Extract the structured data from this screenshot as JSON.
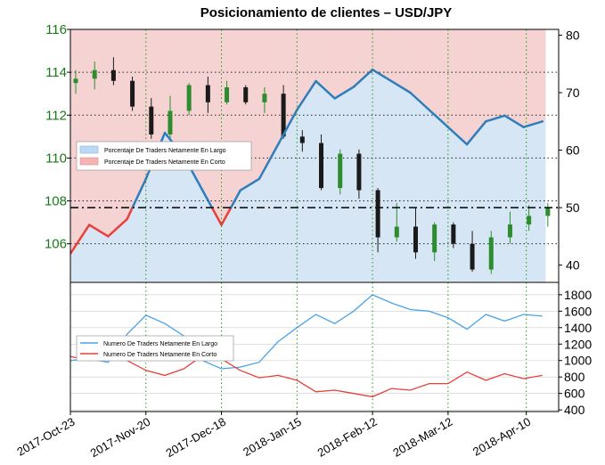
{
  "colors": {
    "long": "#2e7ebc",
    "short": "#e8403a",
    "long_fill": "#d6e6f5",
    "short_fill": "#f6d3d3",
    "candle_up": "#2d8c2d",
    "candle_down": "#1a1a1a",
    "grid": "#1a9a1a",
    "lower_long": "#4aa3e6",
    "lower_short": "#e8403a",
    "price_axis": "#1a7a1a"
  },
  "chart_data": [
    {
      "type": "line",
      "title": "Posicionamiento de clientes – USD/JPY",
      "x_tick_labels": [
        "2017-Oct-23",
        "2017-Nov-20",
        "2017-Dec-18",
        "2018-Jan-15",
        "2018-Feb-12",
        "2018-Mar-12",
        "2018-Apr-10"
      ],
      "x_range": [
        "2017-10-23",
        "2018-04-22"
      ],
      "left_axis": {
        "ticks": [
          106,
          108,
          110,
          112,
          114,
          116
        ],
        "ylim": [
          104.2,
          116
        ]
      },
      "right_axis": {
        "ticks": [
          40,
          50,
          60,
          70,
          80
        ],
        "ylim": [
          37,
          81
        ]
      },
      "reference_line": 50,
      "legend": {
        "position": "center-left",
        "entries": [
          "Porcentaje De Traders Netamente En Largo",
          "Porcentaje De Traders Netamente En Corto"
        ]
      },
      "grid": true,
      "price_ohlc": [
        [
          "2017-10-23",
          113.5,
          114.1,
          113.0,
          113.7
        ],
        [
          "2017-10-30",
          113.7,
          114.5,
          113.2,
          114.1
        ],
        [
          "2017-11-06",
          114.1,
          114.7,
          113.4,
          113.6
        ],
        [
          "2017-11-13",
          113.6,
          113.8,
          112.2,
          112.4
        ],
        [
          "2017-11-20",
          112.4,
          112.8,
          110.9,
          111.1
        ],
        [
          "2017-11-27",
          111.1,
          112.9,
          110.8,
          112.2
        ],
        [
          "2017-12-04",
          112.2,
          113.5,
          112.0,
          113.4
        ],
        [
          "2017-12-11",
          113.4,
          113.8,
          112.1,
          112.6
        ],
        [
          "2017-12-18",
          112.6,
          113.6,
          112.5,
          113.3
        ],
        [
          "2017-12-25",
          113.3,
          113.4,
          112.5,
          112.6
        ],
        [
          "2018-01-01",
          112.6,
          113.3,
          112.1,
          113.0
        ],
        [
          "2018-01-08",
          113.0,
          113.4,
          110.9,
          111.0
        ],
        [
          "2018-01-15",
          111.0,
          111.3,
          110.3,
          110.7
        ],
        [
          "2018-01-22",
          110.7,
          111.1,
          108.5,
          108.6
        ],
        [
          "2018-01-29",
          108.6,
          110.4,
          108.3,
          110.2
        ],
        [
          "2018-02-05",
          110.2,
          110.4,
          108.1,
          108.5
        ],
        [
          "2018-02-12",
          108.5,
          108.6,
          105.6,
          106.3
        ],
        [
          "2018-02-19",
          106.3,
          107.9,
          106.1,
          106.8
        ],
        [
          "2018-02-26",
          106.8,
          107.7,
          105.3,
          105.6
        ],
        [
          "2018-03-05",
          105.6,
          107.0,
          105.2,
          106.9
        ],
        [
          "2018-03-12",
          106.9,
          107.0,
          105.8,
          106.0
        ],
        [
          "2018-03-19",
          106.0,
          106.6,
          104.7,
          104.8
        ],
        [
          "2018-03-26",
          104.8,
          106.6,
          104.6,
          106.3
        ],
        [
          "2018-04-02",
          106.3,
          107.5,
          106.0,
          106.9
        ],
        [
          "2018-04-09",
          106.9,
          107.8,
          106.6,
          107.3
        ],
        [
          "2018-04-16",
          107.3,
          107.9,
          106.8,
          107.7
        ]
      ],
      "long_pct": [
        [
          "2017-10-23",
          42
        ],
        [
          "2017-10-30",
          47
        ],
        [
          "2017-11-06",
          45
        ],
        [
          "2017-11-13",
          48
        ],
        [
          "2017-11-20",
          55
        ],
        [
          "2017-11-27",
          63
        ],
        [
          "2017-12-04",
          59
        ],
        [
          "2017-12-11",
          53
        ],
        [
          "2017-12-18",
          47
        ],
        [
          "2017-12-25",
          53
        ],
        [
          "2018-01-01",
          55
        ],
        [
          "2018-01-08",
          61
        ],
        [
          "2018-01-15",
          67
        ],
        [
          "2018-01-22",
          72
        ],
        [
          "2018-01-29",
          69
        ],
        [
          "2018-02-05",
          71
        ],
        [
          "2018-02-12",
          74
        ],
        [
          "2018-02-19",
          72
        ],
        [
          "2018-02-26",
          70
        ],
        [
          "2018-03-05",
          67
        ],
        [
          "2018-03-12",
          64
        ],
        [
          "2018-03-19",
          61
        ],
        [
          "2018-03-26",
          65
        ],
        [
          "2018-04-02",
          66
        ],
        [
          "2018-04-09",
          64
        ],
        [
          "2018-04-16",
          65
        ]
      ]
    },
    {
      "type": "line",
      "legend": {
        "position": "left",
        "entries": [
          "Numero De Traders Netamente En Largo",
          "Numero De Traders Netamente En Corto"
        ]
      },
      "right_axis": {
        "ticks": [
          400,
          600,
          800,
          1000,
          1200,
          1400,
          1600,
          1800
        ],
        "ylim": [
          380,
          1950
        ]
      },
      "grid": true,
      "series": [
        {
          "name": "Numero De Traders Netamente En Largo",
          "points": [
            [
              "2017-10-23",
              1000
            ],
            [
              "2017-10-30",
              1020
            ],
            [
              "2017-11-06",
              980
            ],
            [
              "2017-11-13",
              1320
            ],
            [
              "2017-11-20",
              1550
            ],
            [
              "2017-11-27",
              1450
            ],
            [
              "2017-12-04",
              1300
            ],
            [
              "2017-12-11",
              1000
            ],
            [
              "2017-12-18",
              900
            ],
            [
              "2017-12-25",
              920
            ],
            [
              "2018-01-01",
              980
            ],
            [
              "2018-01-08",
              1230
            ],
            [
              "2018-01-15",
              1400
            ],
            [
              "2018-01-22",
              1560
            ],
            [
              "2018-01-29",
              1450
            ],
            [
              "2018-02-05",
              1600
            ],
            [
              "2018-02-12",
              1800
            ],
            [
              "2018-02-19",
              1700
            ],
            [
              "2018-02-26",
              1620
            ],
            [
              "2018-03-05",
              1600
            ],
            [
              "2018-03-12",
              1520
            ],
            [
              "2018-03-19",
              1380
            ],
            [
              "2018-03-26",
              1560
            ],
            [
              "2018-04-02",
              1480
            ],
            [
              "2018-04-09",
              1560
            ],
            [
              "2018-04-16",
              1540
            ]
          ]
        },
        {
          "name": "Numero De Traders Netamente En Corto",
          "points": [
            [
              "2017-10-23",
              1050
            ],
            [
              "2017-10-30",
              1000
            ],
            [
              "2017-11-06",
              1080
            ],
            [
              "2017-11-13",
              1000
            ],
            [
              "2017-11-20",
              880
            ],
            [
              "2017-11-27",
              820
            ],
            [
              "2017-12-04",
              900
            ],
            [
              "2017-12-11",
              1060
            ],
            [
              "2017-12-18",
              1020
            ],
            [
              "2017-12-25",
              880
            ],
            [
              "2018-01-01",
              790
            ],
            [
              "2018-01-08",
              820
            ],
            [
              "2018-01-15",
              760
            ],
            [
              "2018-01-22",
              620
            ],
            [
              "2018-01-29",
              640
            ],
            [
              "2018-02-05",
              600
            ],
            [
              "2018-02-12",
              560
            ],
            [
              "2018-02-19",
              660
            ],
            [
              "2018-02-26",
              640
            ],
            [
              "2018-03-05",
              720
            ],
            [
              "2018-03-12",
              720
            ],
            [
              "2018-03-19",
              860
            ],
            [
              "2018-03-26",
              760
            ],
            [
              "2018-04-02",
              840
            ],
            [
              "2018-04-09",
              780
            ],
            [
              "2018-04-16",
              820
            ]
          ]
        }
      ]
    }
  ]
}
